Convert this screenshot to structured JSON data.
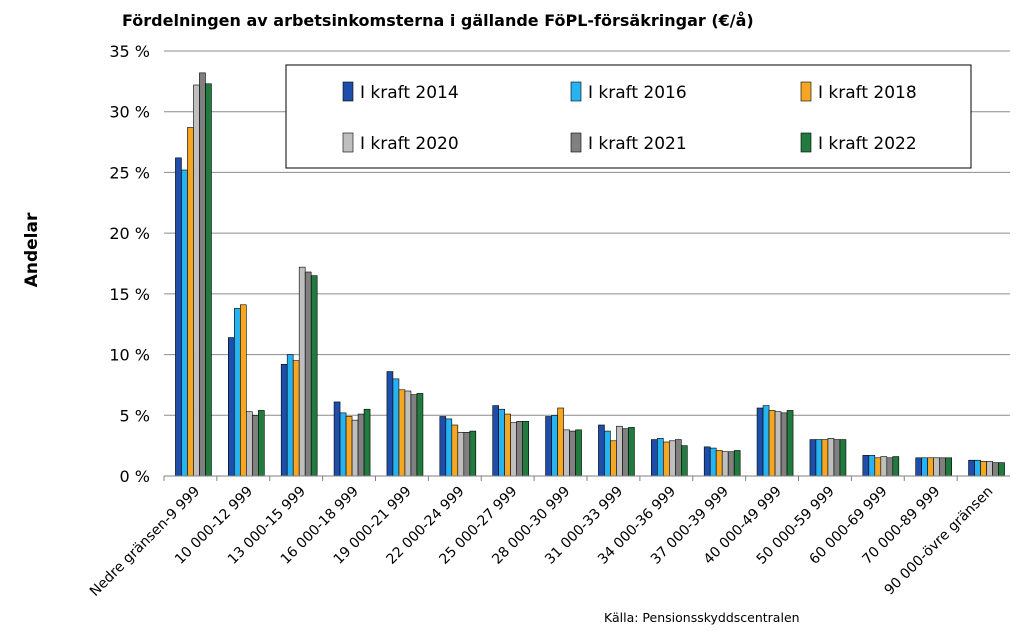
{
  "chart_data": {
    "type": "bar",
    "title": "Fördelningen av arbetsinkomsterna i  gällande FöPL-försäkringar  (€/å)",
    "xlabel": "",
    "ylabel": "Andelar",
    "source": "Källa: Pensionsskyddscentralen",
    "ylim": [
      0,
      35
    ],
    "yticks": [
      0,
      5,
      10,
      15,
      20,
      25,
      30,
      35
    ],
    "ytick_labels": [
      "0 %",
      "5 %",
      "10 %",
      "15 %",
      "20 %",
      "25 %",
      "30 %",
      "35 %"
    ],
    "grid": true,
    "legend": "top-right, inside plot, two rows of three",
    "categories": [
      "Nedre gränsen-9 999",
      "10 000-12 999",
      "13 000-15 999",
      "16 000-18 999",
      "19 000-21 999",
      "22 000-24 999",
      "25 000-27 999",
      "28 000-30 999",
      "31 000-33 999",
      "34 000-36 999",
      "37 000-39 999",
      "40 000-49 999",
      "50 000-59 999",
      "60 000-69 999",
      "70 000-89 999",
      "90 000-övre gränsen"
    ],
    "series": [
      {
        "name": "I kraft 2014",
        "color": "#1F4EAA",
        "values": [
          26.2,
          11.4,
          9.2,
          6.1,
          8.6,
          4.9,
          5.8,
          4.9,
          4.2,
          3.0,
          2.4,
          5.6,
          3.0,
          1.7,
          1.5,
          1.3
        ]
      },
      {
        "name": "I kraft 2016",
        "color": "#27B2F0",
        "values": [
          25.2,
          13.8,
          10.0,
          5.2,
          8.0,
          4.7,
          5.5,
          5.0,
          3.7,
          3.1,
          2.3,
          5.8,
          3.0,
          1.7,
          1.5,
          1.3
        ]
      },
      {
        "name": "I kraft 2018",
        "color": "#F5A623",
        "values": [
          28.7,
          14.1,
          9.5,
          4.9,
          7.1,
          4.2,
          5.1,
          5.6,
          2.9,
          2.8,
          2.1,
          5.4,
          3.0,
          1.5,
          1.5,
          1.2
        ]
      },
      {
        "name": "I kraft 2020",
        "color": "#BFBFBF",
        "values": [
          32.2,
          5.3,
          17.2,
          4.6,
          7.0,
          3.6,
          4.4,
          3.8,
          4.1,
          2.9,
          2.0,
          5.3,
          3.1,
          1.6,
          1.5,
          1.2
        ]
      },
      {
        "name": "I kraft 2021",
        "color": "#808080",
        "values": [
          33.2,
          5.0,
          16.8,
          5.1,
          6.7,
          3.6,
          4.5,
          3.7,
          3.9,
          3.0,
          2.0,
          5.2,
          3.0,
          1.5,
          1.5,
          1.1
        ]
      },
      {
        "name": "I kraft 2022",
        "color": "#217A3E",
        "values": [
          32.3,
          5.4,
          16.5,
          5.5,
          6.8,
          3.7,
          4.5,
          3.8,
          4.0,
          2.5,
          2.1,
          5.4,
          3.0,
          1.6,
          1.5,
          1.1
        ]
      }
    ]
  }
}
